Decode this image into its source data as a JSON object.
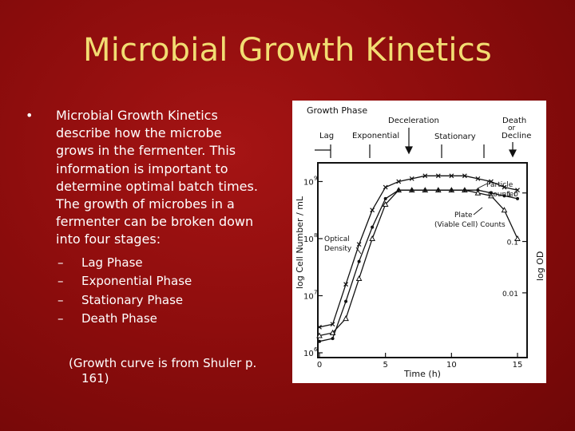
{
  "slide": {
    "title": "Microbial Growth Kinetics",
    "bullet": {
      "symbol": "•",
      "lines": [
        "Microbial Growth Kinetics",
        "describe how the microbe",
        "grows in the fermenter.  This",
        "information is important to",
        "determine optimal batch times.",
        "The growth of microbes in a",
        "fermenter can be broken down",
        "into four stages:"
      ]
    },
    "stages": [
      {
        "dash": "–",
        "label": "Lag Phase"
      },
      {
        "dash": "–",
        "label": "Exponential Phase"
      },
      {
        "dash": "–",
        "label": "Stationary Phase"
      },
      {
        "dash": "–",
        "label": "Death Phase"
      }
    ],
    "note_lines": [
      "(Growth curve is from Shuler p.",
      "161)"
    ]
  },
  "figure": {
    "header": "Growth Phase",
    "phases": {
      "lag": "Lag",
      "exponential": "Exponential",
      "deceleration": "Deceleration",
      "stationary": "Stationary",
      "death_1": "Death",
      "death_2": "or",
      "death_3": "Decline"
    },
    "annotations": {
      "particle_1": "Particle",
      "particle_2": "Counter",
      "plate_1": "Plate",
      "plate_2": "(Viable Cell) Counts",
      "od_1": "Optical",
      "od_2": "Density"
    },
    "left_axis": {
      "label": "log Cell Number / mL",
      "ticks": [
        {
          "base": "10",
          "exp": "9"
        },
        {
          "base": "10",
          "exp": "8"
        },
        {
          "base": "10",
          "exp": "7"
        },
        {
          "base": "10",
          "exp": "6"
        }
      ]
    },
    "right_axis": {
      "label": "log OD",
      "ticks": [
        "1.0",
        "0.1",
        "0.01"
      ]
    },
    "x_axis": {
      "label": "Time (h)",
      "ticks": [
        "0",
        "5",
        "10",
        "15"
      ]
    }
  },
  "chart_data": {
    "type": "line",
    "xlabel": "Time (h)",
    "ylabel": "log Cell Number / mL",
    "y2label": "log OD",
    "xlim": [
      0,
      15
    ],
    "ylim_log10": [
      6,
      9.3
    ],
    "series": [
      {
        "name": "Particle Counter",
        "marker": "x",
        "x": [
          0,
          1,
          2,
          3,
          4,
          5,
          6,
          7,
          8,
          9,
          10,
          11,
          12,
          13,
          14,
          15
        ],
        "y": [
          6.45,
          6.5,
          7.2,
          7.9,
          8.5,
          8.9,
          9.0,
          9.05,
          9.1,
          9.1,
          9.1,
          9.1,
          9.05,
          9.0,
          8.9,
          8.85
        ]
      },
      {
        "name": "Plate (Viable Cell) Counts",
        "marker": "triangle",
        "x": [
          0,
          1,
          2,
          3,
          4,
          5,
          6,
          7,
          8,
          9,
          10,
          11,
          12,
          13,
          14,
          15
        ],
        "y": [
          6.3,
          6.35,
          6.6,
          7.3,
          8.0,
          8.6,
          8.85,
          8.85,
          8.85,
          8.85,
          8.85,
          8.85,
          8.8,
          8.75,
          8.5,
          8.0
        ]
      },
      {
        "name": "Optical Density",
        "marker": "dot",
        "x": [
          0,
          1,
          2,
          3,
          4,
          5,
          6,
          7,
          8,
          9,
          10,
          11,
          12,
          13,
          14,
          15
        ],
        "y": [
          6.2,
          6.25,
          6.9,
          7.6,
          8.2,
          8.7,
          8.85,
          8.85,
          8.85,
          8.85,
          8.85,
          8.85,
          8.85,
          8.8,
          8.75,
          8.7
        ]
      }
    ]
  }
}
